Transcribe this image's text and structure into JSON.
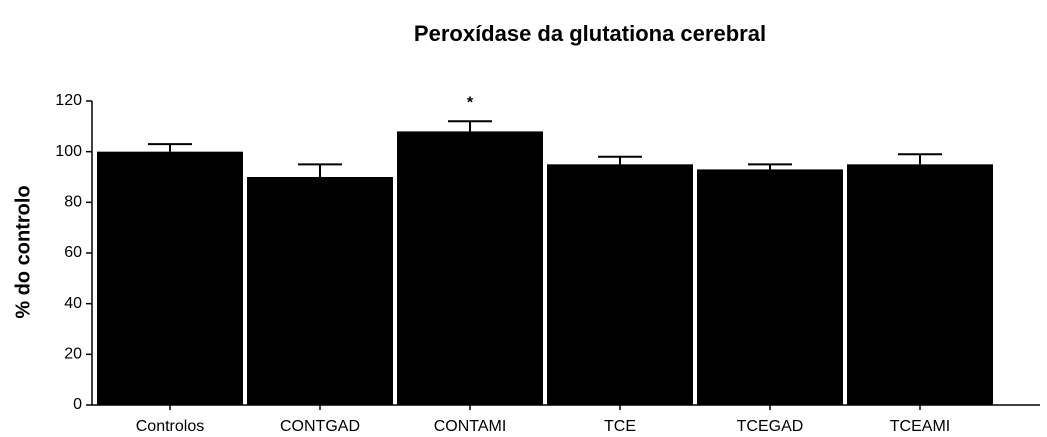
{
  "chart_data": {
    "type": "bar",
    "title": "Peroxídase da glutationa cerebral",
    "y_label": "% do controlo",
    "categories": [
      "Controlos",
      "CONTGAD",
      "CONTAMI",
      "TCE",
      "TCEGAD",
      "TCEAMI"
    ],
    "values": [
      100,
      90,
      108,
      95,
      93,
      95
    ],
    "errors": [
      3,
      5,
      4,
      3,
      2,
      4
    ],
    "color": "#000000",
    "ylim": [
      0,
      120
    ],
    "yticks": [
      0,
      20,
      40,
      60,
      80,
      100,
      120
    ],
    "grid": false,
    "annotations": [
      {
        "text": "*",
        "category": "CONTAMI"
      }
    ]
  }
}
